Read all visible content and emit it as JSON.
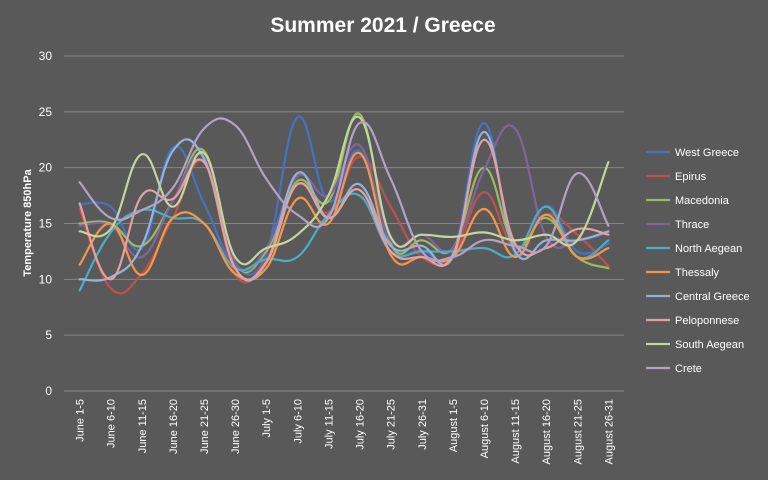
{
  "chart_data": {
    "type": "line",
    "title": "Summer 2021 / Greece",
    "xlabel": "",
    "ylabel": "Temperature 850hPa",
    "ylim": [
      0,
      30
    ],
    "yticks": [
      0,
      5,
      10,
      15,
      20,
      25,
      30
    ],
    "grid": true,
    "legend": "right",
    "categories": [
      "June 1-5",
      "June 6-10",
      "June 11-15",
      "June 16-20",
      "June 21-25",
      "June 26-30",
      "July 1-5",
      "July 6-10",
      "July 11-15",
      "July 16-20",
      "July 21-25",
      "July 26-31",
      "August 1-5",
      "August 6-10",
      "August 11-15",
      "August 16-20",
      "August 21-25",
      "August 26-31"
    ],
    "series": [
      {
        "name": "West Greece",
        "color": "#4472C4",
        "values": [
          16.7,
          16.5,
          12.8,
          21.8,
          16.8,
          11.2,
          12.3,
          24.5,
          17.0,
          21.5,
          13.0,
          12.6,
          12.4,
          24.0,
          12.3,
          16.6,
          12.5,
          13.2
        ]
      },
      {
        "name": "Epirus",
        "color": "#C0504D",
        "values": [
          16.3,
          9.2,
          10.5,
          15.5,
          20.5,
          10.5,
          11.8,
          18.5,
          16.0,
          21.0,
          16.5,
          12.0,
          12.2,
          17.8,
          12.8,
          15.8,
          14.0,
          11.2
        ]
      },
      {
        "name": "Macedonia",
        "color": "#9BBB59",
        "values": [
          15.0,
          15.0,
          13.0,
          17.0,
          21.5,
          11.5,
          12.5,
          18.8,
          17.0,
          24.8,
          13.2,
          13.5,
          12.8,
          20.0,
          13.0,
          15.5,
          12.0,
          11.0
        ]
      },
      {
        "name": "Thrace",
        "color": "#8064A2",
        "values": [
          14.8,
          14.8,
          12.0,
          17.0,
          21.0,
          11.5,
          12.8,
          19.2,
          17.5,
          22.0,
          13.5,
          14.0,
          12.8,
          19.8,
          23.5,
          13.8,
          13.5,
          14.2
        ]
      },
      {
        "name": "North Aegean",
        "color": "#4BACC6",
        "values": [
          9.0,
          14.2,
          16.2,
          15.5,
          15.0,
          11.0,
          11.8,
          12.0,
          15.8,
          17.5,
          12.5,
          12.5,
          12.5,
          12.8,
          12.2,
          16.5,
          12.0,
          13.5
        ]
      },
      {
        "name": "Thessaly",
        "color": "#F79646",
        "values": [
          11.3,
          15.0,
          10.4,
          15.5,
          15.0,
          10.5,
          11.0,
          17.2,
          15.0,
          21.3,
          12.2,
          12.0,
          12.0,
          16.3,
          12.0,
          15.8,
          12.0,
          12.8
        ]
      },
      {
        "name": "Central Greece",
        "color": "#95B3D7",
        "values": [
          10.0,
          10.2,
          13.0,
          21.5,
          20.8,
          11.0,
          11.5,
          19.5,
          15.5,
          18.5,
          13.0,
          13.0,
          12.0,
          23.2,
          12.5,
          13.5,
          13.5,
          14.3
        ]
      },
      {
        "name": "Peloponnese",
        "color": "#E6A09E",
        "values": [
          16.8,
          10.0,
          17.5,
          17.2,
          20.5,
          11.0,
          11.5,
          18.5,
          15.5,
          18.0,
          12.5,
          12.0,
          12.2,
          22.5,
          13.2,
          12.8,
          14.5,
          14.0
        ]
      },
      {
        "name": "South Aegean",
        "color": "#C3D69B",
        "values": [
          14.3,
          14.5,
          21.2,
          16.5,
          21.3,
          12.0,
          12.8,
          14.0,
          17.5,
          24.5,
          13.8,
          14.0,
          13.8,
          14.2,
          13.5,
          14.0,
          13.5,
          20.5
        ]
      },
      {
        "name": "Crete",
        "color": "#B3A2C7",
        "values": [
          18.7,
          15.5,
          16.2,
          18.2,
          23.5,
          23.8,
          19.0,
          15.8,
          15.5,
          24.0,
          19.0,
          12.5,
          12.0,
          13.5,
          13.0,
          13.0,
          19.5,
          14.8
        ]
      }
    ]
  }
}
